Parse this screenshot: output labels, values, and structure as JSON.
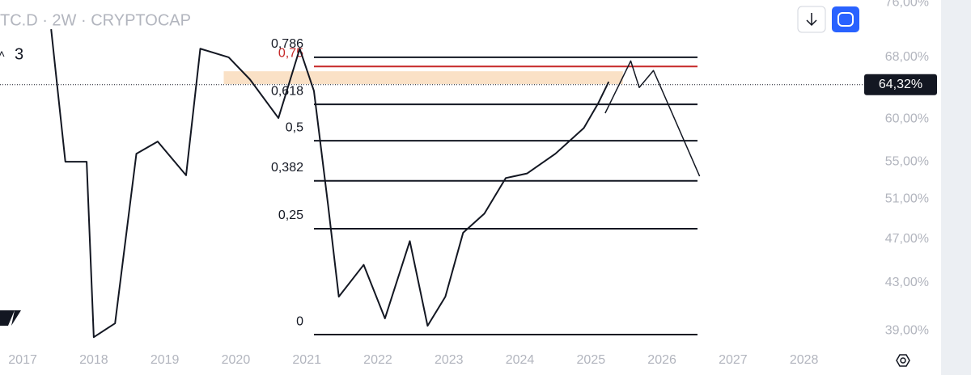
{
  "header": {
    "symbol": "TC.D · 2W · CRYPTOCAP",
    "count": "3"
  },
  "chart_data": {
    "type": "line",
    "log_scale": true,
    "color": "#131722",
    "x": [
      2017.4,
      2017.6,
      2017.9,
      2018.0,
      2018.3,
      2018.6,
      2018.9,
      2019.3,
      2019.5,
      2019.9,
      2020.2,
      2020.6,
      2020.9,
      2021.1,
      2021.3,
      2021.45,
      2021.8,
      2022.1,
      2022.45,
      2022.7,
      2022.95,
      2023.2,
      2023.5,
      2023.8,
      2024.1,
      2024.5,
      2024.9,
      2025.1,
      2025.25
    ],
    "values": [
      72,
      55,
      55,
      38.5,
      39.6,
      55.9,
      57.3,
      53.5,
      69.2,
      68,
      65,
      60.1,
      69.2,
      63.5,
      50.3,
      41.8,
      44.6,
      40,
      46.8,
      39.4,
      41.8,
      47.6,
      49.5,
      53.2,
      53.7,
      55.9,
      58.9,
      61.9,
      64.7
    ],
    "projection": {
      "x": [
        2025.2,
        2025.56,
        2025.68,
        2025.88,
        2026.53
      ],
      "values": [
        60.7,
        67.5,
        63.95,
        66.2,
        53.4
      ]
    },
    "zone": {
      "x": [
        2019.83,
        2025.45
      ],
      "values": [
        66.1,
        64.4
      ],
      "color": "#f9d9b8"
    },
    "fib_levels": [
      {
        "label": "0,786",
        "value": 68.0,
        "color": "#131722"
      },
      {
        "label": "0,75",
        "value": 66.75,
        "color": "#c62828"
      },
      {
        "label": "0,618",
        "value": 61.8,
        "color": "#131722"
      },
      {
        "label": "0,5",
        "value": 57.4,
        "color": "#131722"
      },
      {
        "label": "0,382",
        "value": 52.9,
        "color": "#131722"
      },
      {
        "label": "0,25",
        "value": 48.0,
        "color": "#131722"
      },
      {
        "label": "0",
        "value": 38.7,
        "color": "#131722"
      }
    ],
    "fib_x": [
      2021.1,
      2026.5
    ],
    "current": {
      "value": 64.32,
      "label": "64,32%"
    },
    "xlim": [
      2016.68,
      2028.79
    ],
    "xticks": [
      2017,
      2018,
      2019,
      2020,
      2021,
      2022,
      2023,
      2024,
      2025,
      2026,
      2027,
      2028
    ],
    "ylim": [
      37.7,
      76.4
    ],
    "yticks": [
      {
        "value": 76,
        "label": "76,00%"
      },
      {
        "value": 68,
        "label": "68,00%"
      },
      {
        "value": 60,
        "label": "60,00%"
      },
      {
        "value": 55,
        "label": "55,00%"
      },
      {
        "value": 51,
        "label": "51,00%"
      },
      {
        "value": 47,
        "label": "47,00%"
      },
      {
        "value": 43,
        "label": "43,00%"
      },
      {
        "value": 39,
        "label": "39,00%"
      }
    ]
  }
}
